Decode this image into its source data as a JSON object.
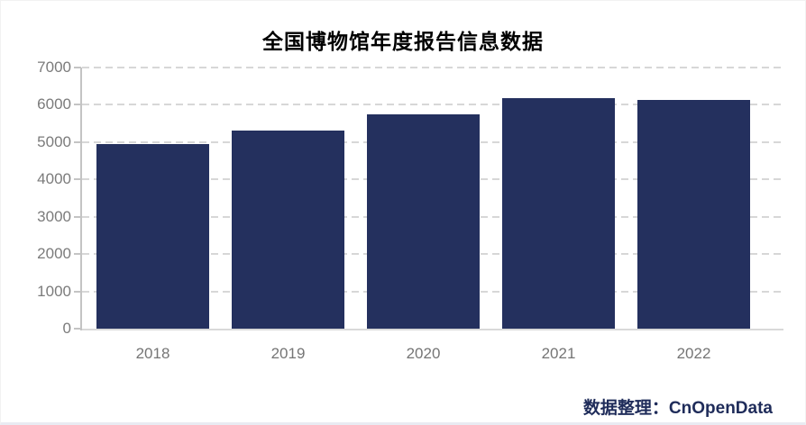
{
  "title": "全国博物馆年度报告信息数据",
  "credit": {
    "label": "数据整理：CnOpenData"
  },
  "colors": {
    "bar": "#24305e",
    "grid": "#d7d7d7",
    "axis": "#c4c4c4",
    "tick_label": "#757575",
    "title": "#000000",
    "credit": "#1f2c5a",
    "bottom_border": "#e9ebf2"
  },
  "chart_data": {
    "type": "bar",
    "title": "全国博物馆年度报告信息数据",
    "categories": [
      "2018",
      "2019",
      "2020",
      "2021",
      "2022"
    ],
    "values": [
      4950,
      5300,
      5750,
      6170,
      6120
    ],
    "xlabel": "",
    "ylabel": "",
    "ylim": [
      0,
      7000
    ],
    "yticks": [
      0,
      1000,
      2000,
      3000,
      4000,
      5000,
      6000,
      7000
    ],
    "grid": "horizontal-dashed",
    "legend": "none",
    "annotation": "数据整理：CnOpenData"
  }
}
